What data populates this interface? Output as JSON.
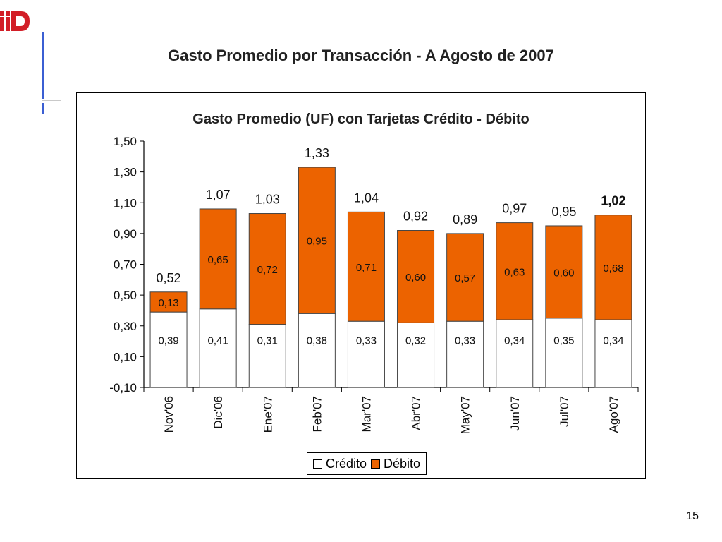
{
  "slide": {
    "title": "Gasto Promedio por Transacción - A Agosto de 2007",
    "page_number": "15"
  },
  "colors": {
    "credito": "#ffffff",
    "debito": "#ec6300",
    "accent_bar": "#3b5fd3",
    "logo_red": "#d21e27"
  },
  "icons": {
    "logo": "bank-logo-icon"
  },
  "chart_data": {
    "type": "bar",
    "stacked": true,
    "title": "Gasto Promedio (UF) con Tarjetas Crédito - Débito",
    "categories": [
      "Nov'06",
      "Dic'06",
      "Ene'07",
      "Feb'07",
      "Mar'07",
      "Abr'07",
      "May'07",
      "Jun'07",
      "Jul'07",
      "Ago'07"
    ],
    "series": [
      {
        "name": "Crédito",
        "values": [
          0.39,
          0.41,
          0.31,
          0.38,
          0.33,
          0.32,
          0.33,
          0.34,
          0.35,
          0.34
        ],
        "labels": [
          "0,39",
          "0,41",
          "0,31",
          "0,38",
          "0,33",
          "0,32",
          "0,33",
          "0,34",
          "0,35",
          "0,34"
        ]
      },
      {
        "name": "Débito",
        "values": [
          0.13,
          0.65,
          0.72,
          0.95,
          0.71,
          0.6,
          0.57,
          0.63,
          0.6,
          0.68
        ],
        "labels": [
          "0,13",
          "0,65",
          "0,72",
          "0,95",
          "0,71",
          "0,60",
          "0,57",
          "0,63",
          "0,60",
          "0,68"
        ]
      }
    ],
    "totals": [
      0.52,
      1.07,
      1.03,
      1.33,
      1.04,
      0.92,
      0.89,
      0.97,
      0.95,
      1.02
    ],
    "total_labels": [
      "0,52",
      "1,07",
      "1,03",
      "1,33",
      "1,04",
      "0,92",
      "0,89",
      "0,97",
      "0,95",
      "1,02"
    ],
    "ylim": [
      -0.1,
      1.5
    ],
    "yticks": [
      -0.1,
      0.1,
      0.3,
      0.5,
      0.7,
      0.9,
      1.1,
      1.3,
      1.5
    ],
    "ytick_labels": [
      "-0,10",
      "0,10",
      "0,30",
      "0,50",
      "0,70",
      "0,90",
      "1,10",
      "1,30",
      "1,50"
    ],
    "legend_position": "bottom-center",
    "grid": false
  }
}
